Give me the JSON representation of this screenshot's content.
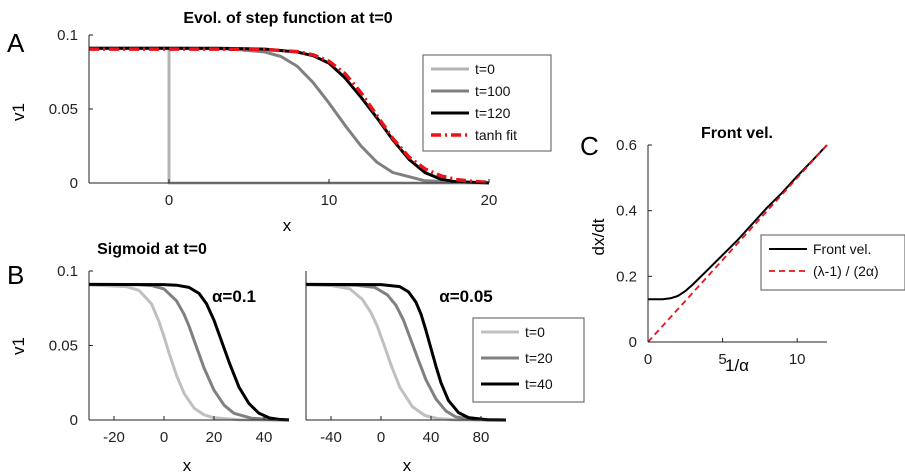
{
  "figure": {
    "panel_letters": [
      "A",
      "B",
      "C"
    ]
  },
  "chart_data": [
    {
      "id": "A",
      "type": "line",
      "title": "Evol. of step function at t=0",
      "xlabel": "x",
      "ylabel": "v1",
      "xlim": [
        -5,
        20
      ],
      "ylim": [
        0,
        0.1
      ],
      "xticks": [
        "0",
        "10",
        "20"
      ],
      "yticks": [
        "0",
        "0.05",
        "0.1"
      ],
      "grid": false,
      "legend_position": "right",
      "series": [
        {
          "name": "t=0",
          "color": "#b3b3b3",
          "dash": "solid",
          "x": [
            -5,
            0,
            0,
            0,
            20
          ],
          "y": [
            0.091,
            0.091,
            0.091,
            0,
            0
          ]
        },
        {
          "name": "t=100",
          "color": "#808080",
          "dash": "solid",
          "x": [
            -5,
            0,
            2,
            4,
            6,
            7,
            8,
            9,
            10,
            11,
            12,
            13,
            14,
            16,
            20
          ],
          "y": [
            0.091,
            0.091,
            0.0909,
            0.0905,
            0.0885,
            0.0855,
            0.079,
            0.068,
            0.054,
            0.039,
            0.025,
            0.014,
            0.007,
            0.0015,
            0
          ]
        },
        {
          "name": "t=120",
          "color": "#000000",
          "dash": "solid",
          "x": [
            -5,
            0,
            3,
            6,
            8,
            9,
            10,
            11,
            12,
            13,
            14,
            15,
            16,
            17,
            18,
            20
          ],
          "y": [
            0.091,
            0.091,
            0.091,
            0.0905,
            0.0885,
            0.086,
            0.081,
            0.071,
            0.058,
            0.044,
            0.029,
            0.016,
            0.007,
            0.0025,
            0.0008,
            0.0001
          ]
        },
        {
          "name": "tanh fit",
          "color": "#e8141a",
          "dash": "dashdot",
          "x": [
            -5,
            0,
            3,
            6,
            8,
            9,
            10,
            11,
            12,
            13,
            14,
            15,
            16,
            17,
            18,
            19,
            20
          ],
          "y": [
            0.0905,
            0.0905,
            0.0905,
            0.0902,
            0.0888,
            0.0866,
            0.0822,
            0.074,
            0.061,
            0.0455,
            0.03,
            0.0175,
            0.0095,
            0.0048,
            0.0023,
            0.001,
            0.0005
          ]
        }
      ]
    },
    {
      "id": "B1",
      "type": "line",
      "title": "Sigmoid at t=0",
      "annotation": "α=0.1",
      "xlabel": "x",
      "ylabel": "v1",
      "xlim": [
        -30,
        50
      ],
      "ylim": [
        0,
        0.1
      ],
      "xticks": [
        "-20",
        "0",
        "20",
        "40"
      ],
      "yticks": [
        "0",
        "0.05",
        "0.1"
      ],
      "grid": false,
      "series": [
        {
          "name": "t=0",
          "color": "#c0c0c0",
          "dash": "solid",
          "x": [
            -30,
            -15,
            -10,
            -5,
            -2,
            0,
            2,
            5,
            8,
            12,
            16,
            20,
            30,
            40,
            50
          ],
          "y": [
            0.0907,
            0.0895,
            0.087,
            0.078,
            0.066,
            0.056,
            0.045,
            0.03,
            0.018,
            0.008,
            0.0035,
            0.0015,
            0.0002,
            0,
            0
          ]
        },
        {
          "name": "t=20",
          "color": "#808080",
          "dash": "solid",
          "x": [
            -30,
            -10,
            -5,
            0,
            5,
            8,
            10,
            13,
            16,
            20,
            24,
            28,
            35,
            45,
            50
          ],
          "y": [
            0.091,
            0.0908,
            0.0902,
            0.088,
            0.08,
            0.071,
            0.063,
            0.049,
            0.035,
            0.02,
            0.01,
            0.0045,
            0.0012,
            0.0001,
            0
          ]
        },
        {
          "name": "t=40",
          "color": "#000000",
          "dash": "solid",
          "x": [
            -30,
            0,
            5,
            10,
            14,
            17,
            20,
            23,
            26,
            30,
            34,
            38,
            42,
            46,
            50
          ],
          "y": [
            0.091,
            0.0909,
            0.0905,
            0.089,
            0.085,
            0.078,
            0.067,
            0.053,
            0.039,
            0.022,
            0.011,
            0.0045,
            0.0015,
            0.0004,
            0.0001
          ]
        }
      ]
    },
    {
      "id": "B2",
      "type": "line",
      "annotation": "α=0.05",
      "xlabel": "x",
      "xlim": [
        -60,
        100
      ],
      "ylim": [
        0,
        0.1
      ],
      "xticks": [
        "-40",
        "0",
        "40",
        "80"
      ],
      "grid": false,
      "legend_position": "right",
      "series": [
        {
          "name": "t=0",
          "color": "#c0c0c0",
          "dash": "solid",
          "x": [
            -60,
            -40,
            -25,
            -15,
            -8,
            -3,
            0,
            3,
            8,
            15,
            25,
            35,
            45,
            60,
            100
          ],
          "y": [
            0.0907,
            0.0903,
            0.088,
            0.081,
            0.072,
            0.063,
            0.056,
            0.049,
            0.037,
            0.022,
            0.009,
            0.003,
            0.001,
            0.0001,
            0
          ]
        },
        {
          "name": "t=20",
          "color": "#808080",
          "dash": "solid",
          "x": [
            -60,
            -20,
            -5,
            5,
            12,
            18,
            22,
            26,
            30,
            36,
            44,
            52,
            60,
            75,
            100
          ],
          "y": [
            0.091,
            0.0905,
            0.089,
            0.084,
            0.077,
            0.067,
            0.058,
            0.049,
            0.04,
            0.027,
            0.014,
            0.006,
            0.002,
            0.0003,
            0
          ]
        },
        {
          "name": "t=40",
          "color": "#000000",
          "dash": "solid",
          "x": [
            -60,
            0,
            15,
            22,
            28,
            32,
            36,
            40,
            44,
            48,
            54,
            62,
            70,
            85,
            100
          ],
          "y": [
            0.091,
            0.0909,
            0.0895,
            0.086,
            0.079,
            0.071,
            0.06,
            0.048,
            0.036,
            0.025,
            0.013,
            0.005,
            0.0016,
            0.0002,
            0
          ]
        }
      ]
    },
    {
      "id": "C",
      "type": "line",
      "title": "Front vel.",
      "xlabel": "1/α",
      "ylabel": "dx/dt",
      "xlim": [
        0,
        12
      ],
      "ylim": [
        0,
        0.6
      ],
      "xticks": [
        "0",
        "5",
        "10"
      ],
      "yticks": [
        "0",
        "0.2",
        "0.4",
        "0.6"
      ],
      "grid": false,
      "legend_position": "right",
      "series": [
        {
          "name": "Front vel.",
          "color": "#000000",
          "dash": "solid",
          "x": [
            0,
            1,
            1.5,
            2,
            2.5,
            3,
            4,
            5,
            6,
            7,
            8,
            9,
            10,
            11,
            12
          ],
          "y": [
            0.13,
            0.13,
            0.133,
            0.14,
            0.155,
            0.175,
            0.22,
            0.265,
            0.31,
            0.36,
            0.41,
            0.455,
            0.505,
            0.552,
            0.6
          ]
        },
        {
          "name": "(λ-1) / (2α)",
          "color": "#e8141a",
          "dash": "dash",
          "x": [
            0,
            12
          ],
          "y": [
            0,
            0.6
          ]
        }
      ]
    }
  ]
}
